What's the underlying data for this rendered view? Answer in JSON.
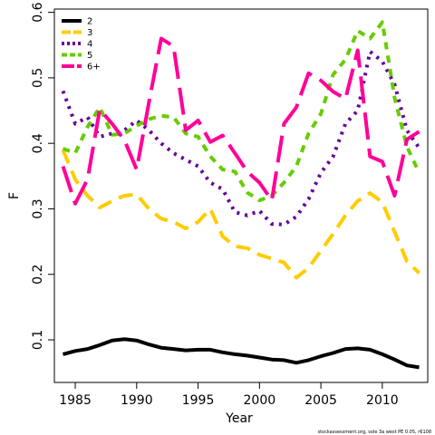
{
  "chart_data": {
    "type": "line",
    "xlabel": "Year",
    "ylabel": "F",
    "xlim": [
      1983.3,
      2013.7
    ],
    "ylim": [
      0.035,
      0.605
    ],
    "xticks": [
      1985,
      1990,
      1995,
      2000,
      2005,
      2010
    ],
    "yticks": [
      0.1,
      0.2,
      0.3,
      0.4,
      0.5,
      0.6
    ],
    "grid": false,
    "legend_position": "top-left",
    "footnote": "stockassessment.org, sole 3a west PE 0.05, r6108",
    "x": [
      1984,
      1985,
      1986,
      1987,
      1988,
      1989,
      1990,
      1991,
      1992,
      1993,
      1994,
      1995,
      1996,
      1997,
      1998,
      1999,
      2000,
      2001,
      2002,
      2003,
      2004,
      2005,
      2006,
      2007,
      2008,
      2009,
      2010,
      2011,
      2012,
      2013
    ],
    "series": [
      {
        "name": "2",
        "color": "#000000",
        "dash": "solid",
        "values": [
          0.078,
          0.083,
          0.086,
          0.092,
          0.099,
          0.101,
          0.099,
          0.093,
          0.088,
          0.086,
          0.084,
          0.085,
          0.085,
          0.081,
          0.078,
          0.076,
          0.073,
          0.07,
          0.069,
          0.065,
          0.069,
          0.075,
          0.08,
          0.086,
          0.087,
          0.085,
          0.078,
          0.07,
          0.061,
          0.058
        ]
      },
      {
        "name": "3",
        "color": "#ffcc00",
        "dash": "longdash",
        "values": [
          0.39,
          0.345,
          0.32,
          0.302,
          0.312,
          0.32,
          0.322,
          0.3,
          0.285,
          0.28,
          0.27,
          0.28,
          0.3,
          0.258,
          0.243,
          0.24,
          0.23,
          0.224,
          0.218,
          0.195,
          0.21,
          0.236,
          0.262,
          0.29,
          0.312,
          0.324,
          0.31,
          0.265,
          0.22,
          0.202
        ]
      },
      {
        "name": "4",
        "color": "#660099",
        "dash": "dotted",
        "values": [
          0.48,
          0.43,
          0.44,
          0.41,
          0.415,
          0.42,
          0.435,
          0.42,
          0.4,
          0.385,
          0.375,
          0.365,
          0.34,
          0.33,
          0.295,
          0.29,
          0.297,
          0.277,
          0.276,
          0.288,
          0.315,
          0.355,
          0.38,
          0.43,
          0.45,
          0.54,
          0.525,
          0.49,
          0.42,
          0.393
        ]
      },
      {
        "name": "5",
        "color": "#66cc00",
        "dash": "shortdash",
        "values": [
          0.392,
          0.385,
          0.425,
          0.455,
          0.413,
          0.415,
          0.427,
          0.437,
          0.442,
          0.44,
          0.415,
          0.41,
          0.38,
          0.36,
          0.357,
          0.325,
          0.313,
          0.32,
          0.34,
          0.365,
          0.415,
          0.445,
          0.505,
          0.528,
          0.572,
          0.56,
          0.585,
          0.47,
          0.395,
          0.355
        ]
      },
      {
        "name": "6+",
        "color": "#ff0099",
        "dash": "verylong",
        "values": [
          0.365,
          0.308,
          0.345,
          0.452,
          0.43,
          0.405,
          0.36,
          0.463,
          0.56,
          0.548,
          0.42,
          0.435,
          0.402,
          0.412,
          0.385,
          0.357,
          0.34,
          0.313,
          0.43,
          0.455,
          0.507,
          0.496,
          0.479,
          0.468,
          0.542,
          0.38,
          0.372,
          0.32,
          0.406,
          0.418
        ]
      }
    ]
  }
}
